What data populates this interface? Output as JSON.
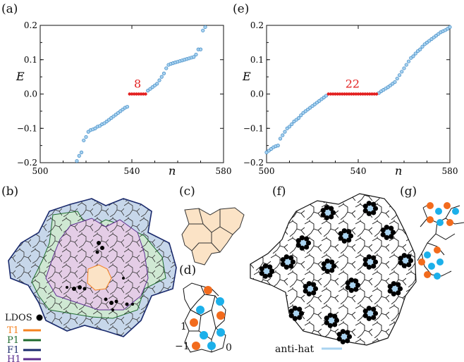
{
  "panels": {
    "a": "(a)",
    "e": "(e)",
    "b": "(b)",
    "c": "(c)",
    "d": "(d)",
    "f": "(f)",
    "g": "(g)"
  },
  "colors": {
    "point": "#4a90c8",
    "zero_mode": "#e32020",
    "T1": "#f58220",
    "P1": "#1e6b2e",
    "F1": "#1a2a6c",
    "H1": "#5b2d8e",
    "anti_hat": "#a9d3f0",
    "ldos": "#000000",
    "fill_pink": "#e4cde6",
    "fill_green": "#cfe8d3",
    "fill_blue": "#c7d7ea",
    "fill_peach": "#fbe3c6",
    "orange_site": "#f26b1d",
    "cyan_site": "#1cb0ea"
  },
  "legend_b": {
    "ldos_label": "LDOS",
    "items": [
      {
        "label": "T1",
        "color": "#f58220"
      },
      {
        "label": "P1",
        "color": "#1e6b2e"
      },
      {
        "label": "F1",
        "color": "#1a2a6c"
      },
      {
        "label": "H1",
        "color": "#5b2d8e"
      }
    ]
  },
  "panel_d": {
    "label_top": "1",
    "label_left": "−1",
    "label_right": "0"
  },
  "panel_f": {
    "legend_label": "anti-hat"
  },
  "chart_data": [
    {
      "type": "scatter",
      "panel": "(a)",
      "xlabel": "n",
      "ylabel": "E",
      "xlim": [
        500,
        580
      ],
      "ylim": [
        -0.2,
        0.2
      ],
      "xticks": [
        "500",
        "540",
        "580"
      ],
      "yticks": [
        "−0.2",
        "−0.1",
        "0.0",
        "0.1",
        "0.2"
      ],
      "annotation": "8",
      "zero_modes": {
        "x_start": 539,
        "count": 8,
        "y": 0.0
      },
      "series": [
        {
          "x": [
            516,
            517,
            518,
            519,
            520,
            521,
            522,
            523,
            524,
            525,
            526,
            527,
            528,
            529,
            530,
            531,
            532,
            533,
            534,
            535,
            536,
            537,
            538
          ],
          "y": [
            -0.195,
            -0.18,
            -0.17,
            -0.135,
            -0.125,
            -0.11,
            -0.105,
            -0.103,
            -0.1,
            -0.095,
            -0.093,
            -0.088,
            -0.085,
            -0.08,
            -0.075,
            -0.07,
            -0.065,
            -0.06,
            -0.055,
            -0.05,
            -0.045,
            -0.04,
            -0.037
          ]
        },
        {
          "x": [
            547,
            548,
            549,
            550,
            551,
            552,
            553,
            554,
            555,
            556,
            557,
            558,
            559,
            560,
            561,
            562,
            563,
            564,
            565,
            566,
            567,
            568,
            569,
            570,
            571,
            572
          ],
          "y": [
            0.01,
            0.015,
            0.02,
            0.025,
            0.03,
            0.04,
            0.05,
            0.06,
            0.075,
            0.085,
            0.088,
            0.09,
            0.092,
            0.094,
            0.096,
            0.098,
            0.1,
            0.102,
            0.104,
            0.106,
            0.108,
            0.115,
            0.13,
            0.13,
            0.185,
            0.195
          ]
        }
      ]
    },
    {
      "type": "scatter",
      "panel": "(e)",
      "xlabel": "n",
      "ylabel": "E",
      "xlim": [
        500,
        580
      ],
      "ylim": [
        -0.2,
        0.2
      ],
      "xticks": [
        "500",
        "540",
        "580"
      ],
      "yticks": [
        "−0.2",
        "−0.1",
        "0.0",
        "0.1",
        "0.2"
      ],
      "annotation": "22",
      "zero_modes": {
        "x_start": 527,
        "count": 22,
        "y": 0.0
      },
      "series": [
        {
          "x": [
            500,
            501,
            502,
            503,
            504,
            505,
            506,
            507,
            508,
            509,
            510,
            511,
            512,
            513,
            514,
            515,
            516,
            517,
            518,
            519,
            520,
            521,
            522,
            523,
            524,
            525,
            526
          ],
          "y": [
            -0.17,
            -0.165,
            -0.16,
            -0.155,
            -0.152,
            -0.15,
            -0.13,
            -0.12,
            -0.11,
            -0.1,
            -0.095,
            -0.088,
            -0.08,
            -0.075,
            -0.07,
            -0.062,
            -0.055,
            -0.05,
            -0.045,
            -0.04,
            -0.035,
            -0.03,
            -0.025,
            -0.02,
            -0.015,
            -0.01,
            -0.005
          ]
        },
        {
          "x": [
            549,
            550,
            551,
            552,
            553,
            554,
            555,
            556,
            557,
            558,
            559,
            560,
            561,
            562,
            563,
            564,
            565,
            566,
            567,
            568,
            569,
            570,
            571,
            572,
            573,
            574,
            575,
            576,
            577,
            578,
            579,
            580
          ],
          "y": [
            0.003,
            0.008,
            0.012,
            0.016,
            0.02,
            0.025,
            0.03,
            0.035,
            0.045,
            0.055,
            0.065,
            0.075,
            0.085,
            0.095,
            0.105,
            0.11,
            0.118,
            0.125,
            0.13,
            0.138,
            0.145,
            0.15,
            0.155,
            0.16,
            0.165,
            0.17,
            0.175,
            0.18,
            0.183,
            0.186,
            0.19,
            0.195
          ]
        }
      ]
    }
  ]
}
